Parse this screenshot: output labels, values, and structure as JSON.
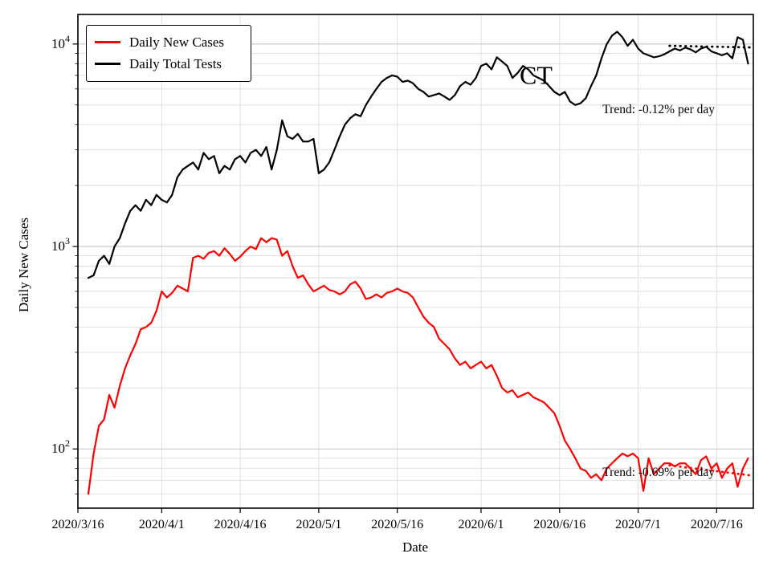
{
  "chart_data": {
    "type": "line",
    "title": "",
    "xlabel": "Date",
    "ylabel": "Daily New Cases",
    "yscale": "log",
    "x_unit": "days since 2020/3/16",
    "xlim": [
      0,
      129
    ],
    "ylim": [
      51,
      14000
    ],
    "grid": true,
    "colors": {
      "grid_major": "#c6c6c6",
      "grid_minor": "#dedede",
      "axis": "#000000",
      "cases_red": "#ff0000",
      "tests_black": "#000000"
    },
    "x_ticks": [
      {
        "day": 0,
        "label": "2020/3/16"
      },
      {
        "day": 16,
        "label": "2020/4/1"
      },
      {
        "day": 31,
        "label": "2020/4/16"
      },
      {
        "day": 46,
        "label": "2020/5/1"
      },
      {
        "day": 61,
        "label": "2020/5/16"
      },
      {
        "day": 77,
        "label": "2020/6/1"
      },
      {
        "day": 92,
        "label": "2020/6/16"
      },
      {
        "day": 107,
        "label": "2020/7/1"
      },
      {
        "day": 122,
        "label": "2020/7/16"
      }
    ],
    "y_ticks": [
      {
        "value": 100,
        "label": "10^2"
      },
      {
        "value": 1000,
        "label": "10^3"
      },
      {
        "value": 10000,
        "label": "10^4"
      }
    ],
    "series": [
      {
        "name": "Daily New Cases",
        "color": "#ff0000",
        "start_day": 2,
        "cadence_days": 1,
        "values": [
          60,
          95,
          130,
          140,
          185,
          160,
          205,
          250,
          290,
          330,
          390,
          400,
          420,
          480,
          600,
          560,
          590,
          640,
          620,
          600,
          880,
          900,
          870,
          930,
          950,
          900,
          980,
          920,
          850,
          890,
          950,
          1000,
          970,
          1100,
          1050,
          1100,
          1080,
          900,
          950,
          800,
          700,
          720,
          650,
          600,
          620,
          640,
          610,
          600,
          580,
          600,
          650,
          670,
          620,
          550,
          560,
          580,
          560,
          590,
          600,
          620,
          600,
          590,
          560,
          500,
          450,
          420,
          400,
          350,
          330,
          310,
          280,
          260,
          270,
          250,
          260,
          270,
          250,
          260,
          230,
          200,
          190,
          195,
          180,
          185,
          190,
          180,
          175,
          170,
          160,
          150,
          130,
          110,
          100,
          90,
          80,
          78,
          72,
          75,
          70,
          80,
          85,
          90,
          95,
          92,
          95,
          90,
          62,
          90,
          75,
          80,
          85,
          85,
          82,
          85,
          85,
          80,
          75,
          88,
          92,
          80,
          85,
          72,
          80,
          85,
          65,
          80,
          90
        ]
      },
      {
        "name": "Daily Total Tests",
        "color": "#000000",
        "start_day": 2,
        "cadence_days": 1,
        "values": [
          700,
          720,
          850,
          900,
          820,
          1000,
          1100,
          1300,
          1500,
          1600,
          1500,
          1700,
          1600,
          1800,
          1700,
          1650,
          1800,
          2200,
          2400,
          2500,
          2600,
          2400,
          2900,
          2700,
          2800,
          2300,
          2500,
          2400,
          2700,
          2800,
          2600,
          2900,
          3000,
          2800,
          3100,
          2400,
          3000,
          4200,
          3500,
          3400,
          3600,
          3300,
          3300,
          3400,
          2300,
          2400,
          2600,
          3000,
          3500,
          4000,
          4300,
          4500,
          4400,
          5000,
          5500,
          6000,
          6500,
          6800,
          7000,
          6900,
          6500,
          6600,
          6400,
          6000,
          5800,
          5500,
          5600,
          5700,
          5500,
          5300,
          5600,
          6200,
          6500,
          6300,
          6800,
          7800,
          8000,
          7500,
          8600,
          8200,
          7800,
          6800,
          7200,
          7800,
          7500,
          7000,
          6800,
          6600,
          6200,
          5800,
          5600,
          5800,
          5200,
          5000,
          5100,
          5400,
          6200,
          7000,
          8500,
          10000,
          11000,
          11500,
          10800,
          9800,
          10500,
          9500,
          9000,
          8800,
          8600,
          8700,
          8900,
          9200,
          9500,
          9300,
          9600,
          9400,
          9100,
          9500,
          9700,
          9200,
          9000,
          8800,
          9000,
          8500,
          10800,
          10500,
          8000
        ]
      }
    ],
    "trend_lines": [
      {
        "series": "Daily Total Tests",
        "color": "#000000",
        "x": [
          113,
          128.5
        ],
        "y": [
          9800,
          9620
        ],
        "rate_label": "-0.12% per day"
      },
      {
        "series": "Daily New Cases",
        "color": "#ff0000",
        "x": [
          113,
          128.5
        ],
        "y": [
          83,
          74
        ],
        "rate_label": "-0.69% per day"
      }
    ],
    "annotations": [
      {
        "text": "CT",
        "x": 87.5,
        "y": 6800,
        "color": "#000000",
        "font_size": 32,
        "anchor": "middle"
      },
      {
        "text": "Trend: -0.12% per day",
        "x": 100.2,
        "y": 4700,
        "color": "#000000",
        "font_size": 15.5,
        "anchor": "start"
      },
      {
        "text": "Trend: -0.69% per day",
        "x": 100.2,
        "y": 76,
        "color": "#000000",
        "font_size": 15.5,
        "anchor": "start"
      }
    ],
    "legend": {
      "position": "upper left",
      "entries": [
        {
          "label": "Daily New Cases",
          "color": "#ff0000"
        },
        {
          "label": "Daily Total Tests",
          "color": "#000000"
        }
      ]
    }
  }
}
